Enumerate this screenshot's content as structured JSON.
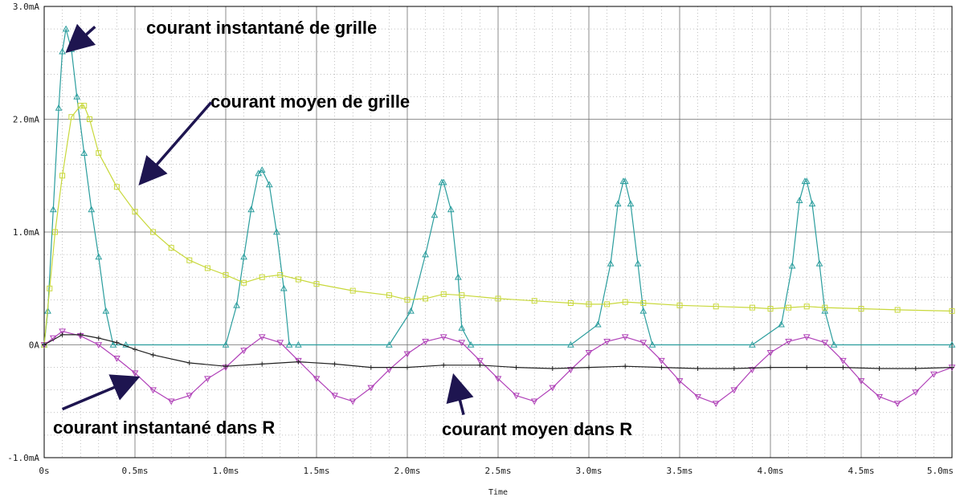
{
  "chart_data": {
    "type": "line",
    "xlabel": "Time",
    "ylabel": "",
    "x_unit": "ms",
    "xlim": [
      0,
      5.0
    ],
    "ylim": [
      -1.0,
      3.0
    ],
    "x_ticks": [
      "0s",
      "0.5ms",
      "1.0ms",
      "1.5ms",
      "2.0ms",
      "2.5ms",
      "3.0ms",
      "3.5ms",
      "4.0ms",
      "4.5ms",
      "5.0ms"
    ],
    "x_tick_values": [
      0,
      0.5,
      1.0,
      1.5,
      2.0,
      2.5,
      3.0,
      3.5,
      4.0,
      4.5,
      5.0
    ],
    "y_ticks": [
      "-1.0mA",
      "0A",
      "1.0mA",
      "2.0mA",
      "3.0mA"
    ],
    "y_tick_values": [
      -1.0,
      0,
      1.0,
      2.0,
      3.0
    ],
    "grid": true,
    "legend": "none",
    "series": [
      {
        "key": "grid_instant",
        "color": "#2a9d9d",
        "marker": "triangle-up",
        "x": [
          0,
          0.02,
          0.05,
          0.08,
          0.1,
          0.12,
          0.15,
          0.18,
          0.22,
          0.26,
          0.3,
          0.34,
          0.38,
          0.45,
          1.0,
          1.06,
          1.1,
          1.14,
          1.18,
          1.2,
          1.24,
          1.28,
          1.32,
          1.35,
          1.4,
          1.9,
          2.02,
          2.1,
          2.15,
          2.19,
          2.2,
          2.24,
          2.28,
          2.3,
          2.35,
          2.9,
          3.05,
          3.12,
          3.16,
          3.19,
          3.2,
          3.23,
          3.27,
          3.3,
          3.35,
          3.9,
          4.06,
          4.12,
          4.16,
          4.19,
          4.2,
          4.23,
          4.27,
          4.3,
          4.35,
          5.0
        ],
        "y": [
          0,
          0.3,
          1.2,
          2.1,
          2.6,
          2.8,
          2.62,
          2.2,
          1.7,
          1.2,
          0.78,
          0.3,
          0,
          0,
          0,
          0.35,
          0.78,
          1.2,
          1.52,
          1.55,
          1.42,
          1.0,
          0.5,
          0,
          0,
          0,
          0.3,
          0.8,
          1.15,
          1.44,
          1.44,
          1.2,
          0.6,
          0.15,
          0,
          0,
          0.18,
          0.72,
          1.25,
          1.45,
          1.45,
          1.25,
          0.72,
          0.3,
          0,
          0,
          0.18,
          0.7,
          1.28,
          1.45,
          1.45,
          1.25,
          0.72,
          0.3,
          0,
          0
        ]
      },
      {
        "key": "grid_average",
        "color": "#c8d83a",
        "marker": "square",
        "x": [
          0,
          0.03,
          0.06,
          0.1,
          0.15,
          0.2,
          0.22,
          0.25,
          0.3,
          0.4,
          0.5,
          0.6,
          0.7,
          0.8,
          0.9,
          1.0,
          1.1,
          1.2,
          1.3,
          1.4,
          1.5,
          1.7,
          1.9,
          2.0,
          2.1,
          2.2,
          2.3,
          2.5,
          2.7,
          2.9,
          3.0,
          3.1,
          3.2,
          3.3,
          3.5,
          3.7,
          3.9,
          4.0,
          4.1,
          4.2,
          4.3,
          4.5,
          4.7,
          5.0
        ],
        "y": [
          0,
          0.5,
          1.0,
          1.5,
          2.02,
          2.12,
          2.12,
          2.0,
          1.7,
          1.4,
          1.18,
          1.0,
          0.86,
          0.75,
          0.68,
          0.62,
          0.55,
          0.6,
          0.62,
          0.58,
          0.54,
          0.48,
          0.44,
          0.4,
          0.41,
          0.45,
          0.44,
          0.41,
          0.39,
          0.37,
          0.36,
          0.36,
          0.38,
          0.37,
          0.35,
          0.34,
          0.33,
          0.32,
          0.33,
          0.34,
          0.33,
          0.32,
          0.31,
          0.3
        ]
      },
      {
        "key": "r_instant",
        "color": "#b040b8",
        "marker": "triangle-down",
        "x": [
          0,
          0.05,
          0.1,
          0.2,
          0.3,
          0.4,
          0.5,
          0.6,
          0.7,
          0.8,
          0.9,
          1.0,
          1.1,
          1.2,
          1.3,
          1.4,
          1.5,
          1.6,
          1.7,
          1.8,
          1.9,
          2.0,
          2.1,
          2.2,
          2.3,
          2.4,
          2.5,
          2.6,
          2.7,
          2.8,
          2.9,
          3.0,
          3.1,
          3.2,
          3.3,
          3.4,
          3.5,
          3.6,
          3.7,
          3.8,
          3.9,
          4.0,
          4.1,
          4.2,
          4.3,
          4.4,
          4.5,
          4.6,
          4.7,
          4.8,
          4.9,
          5.0
        ],
        "y": [
          0,
          0.06,
          0.12,
          0.08,
          0.0,
          -0.12,
          -0.25,
          -0.4,
          -0.5,
          -0.45,
          -0.3,
          -0.2,
          -0.05,
          0.07,
          0.02,
          -0.14,
          -0.3,
          -0.45,
          -0.5,
          -0.38,
          -0.22,
          -0.08,
          0.03,
          0.07,
          0.02,
          -0.14,
          -0.3,
          -0.45,
          -0.5,
          -0.38,
          -0.22,
          -0.07,
          0.03,
          0.07,
          0.02,
          -0.14,
          -0.32,
          -0.46,
          -0.52,
          -0.4,
          -0.22,
          -0.07,
          0.03,
          0.07,
          0.02,
          -0.14,
          -0.32,
          -0.46,
          -0.52,
          -0.42,
          -0.26,
          -0.2
        ]
      },
      {
        "key": "r_average",
        "color": "#202020",
        "marker": "plus",
        "x": [
          0,
          0.1,
          0.2,
          0.3,
          0.4,
          0.5,
          0.6,
          0.8,
          1.0,
          1.2,
          1.4,
          1.6,
          1.8,
          2.0,
          2.2,
          2.4,
          2.6,
          2.8,
          3.0,
          3.2,
          3.4,
          3.6,
          3.8,
          4.0,
          4.2,
          4.4,
          4.6,
          4.8,
          5.0
        ],
        "y": [
          0,
          0.09,
          0.09,
          0.06,
          0.02,
          -0.04,
          -0.09,
          -0.16,
          -0.19,
          -0.17,
          -0.15,
          -0.17,
          -0.2,
          -0.2,
          -0.18,
          -0.18,
          -0.2,
          -0.21,
          -0.2,
          -0.19,
          -0.2,
          -0.21,
          -0.21,
          -0.2,
          -0.2,
          -0.2,
          -0.21,
          -0.21,
          -0.2
        ]
      }
    ],
    "annotations": [
      {
        "key": "a1",
        "text": "courant instantané de grille",
        "anchor_x": 0.28,
        "anchor_y": 2.82,
        "target_x": 0.14,
        "target_y": 2.62
      },
      {
        "key": "a2",
        "text": "courant moyen de grille",
        "anchor_x": 0.92,
        "anchor_y": 2.15,
        "target_x": 0.54,
        "target_y": 1.45
      },
      {
        "key": "a3",
        "text": "courant instantané dans R",
        "anchor_x": 0.1,
        "anchor_y": -0.57,
        "target_x": 0.5,
        "target_y": -0.3
      },
      {
        "key": "a4",
        "text": "courant moyen dans R",
        "anchor_x": 2.31,
        "anchor_y": -0.62,
        "target_x": 2.26,
        "target_y": -0.3
      }
    ]
  }
}
